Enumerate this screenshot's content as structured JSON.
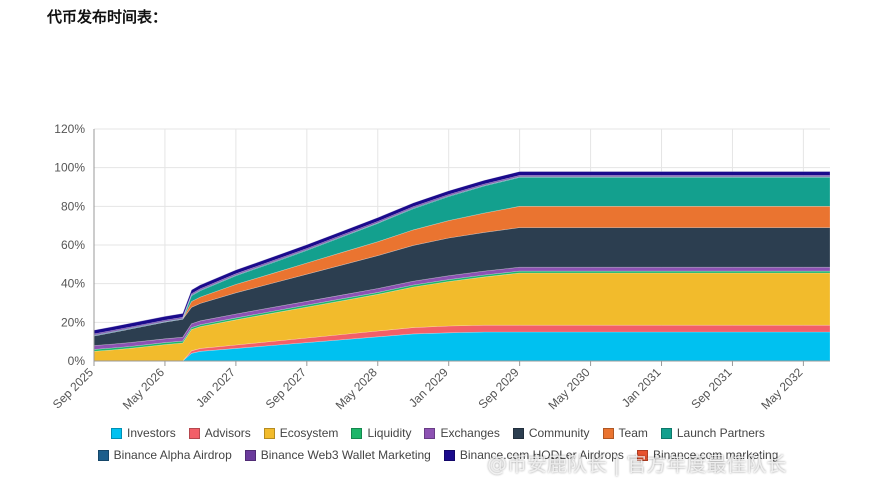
{
  "page": {
    "title": "代币发布时间表："
  },
  "watermark": "@币安鹿队长 | 官方年度最佳队长",
  "chart_data": {
    "type": "area",
    "stacked": true,
    "x": [
      "Sep 2025",
      "Nov 2025",
      "Jan 2026",
      "Mar 2026",
      "May 2026",
      "Jul 2026",
      "Aug 2026",
      "Sep 2026",
      "Jan 2027",
      "May 2027",
      "Sep 2027",
      "Jan 2028",
      "May 2028",
      "Sep 2028",
      "Jan 2029",
      "May 2029",
      "Sep 2029",
      "Jan 2030",
      "May 2030",
      "Sep 2030",
      "Jan 2031",
      "May 2031",
      "Sep 2031",
      "Jan 2032",
      "May 2032",
      "Aug 2032"
    ],
    "x_tick_labels": [
      "Sep 2025",
      "May 2026",
      "Jan 2027",
      "Sep 2027",
      "May 2028",
      "Jan 2029",
      "Sep 2029",
      "May 2030",
      "Jan 2031",
      "Sep 2031",
      "May 2032"
    ],
    "y_ticks": [
      "0%",
      "20%",
      "40%",
      "60%",
      "80%",
      "100%",
      "120%"
    ],
    "ylim": [
      0,
      120
    ],
    "grid": true,
    "legend_position": "bottom",
    "series": [
      {
        "name": "Investors",
        "color": "#00c1f0",
        "values": [
          0,
          0,
          0,
          0,
          0,
          0,
          4,
          5,
          6.5,
          8,
          9.5,
          11,
          12.5,
          14,
          14.6,
          15,
          15,
          15,
          15,
          15,
          15,
          15,
          15,
          15,
          15,
          15
        ]
      },
      {
        "name": "Advisors",
        "color": "#f25f68",
        "values": [
          0,
          0,
          0,
          0,
          0,
          0,
          1.3,
          1.5,
          1.8,
          2.1,
          2.4,
          2.7,
          3,
          3.3,
          3.5,
          3.5,
          3.5,
          3.5,
          3.5,
          3.5,
          3.5,
          3.5,
          3.5,
          3.5,
          3.5,
          3.5
        ]
      },
      {
        "name": "Ecosystem",
        "color": "#f2bb2c",
        "values": [
          5,
          5.7,
          6.5,
          7.5,
          8.5,
          9.3,
          11,
          11.3,
          13,
          14.5,
          16,
          17.5,
          19,
          21,
          23,
          25,
          27,
          27,
          27,
          27,
          27,
          27,
          27,
          27,
          27,
          27
        ]
      },
      {
        "name": "Liquidity",
        "color": "#1db669",
        "values": [
          1,
          1,
          1,
          1,
          1,
          1,
          1,
          1,
          1,
          1,
          1,
          1,
          1,
          1,
          1,
          1,
          1,
          1,
          1,
          1,
          1,
          1,
          1,
          1,
          1,
          1
        ]
      },
      {
        "name": "Exchanges",
        "color": "#8d52b3",
        "values": [
          2,
          2,
          2,
          2,
          2,
          2,
          2,
          2,
          2,
          2,
          2,
          2,
          2,
          2,
          2,
          2,
          2,
          2,
          2,
          2,
          2,
          2,
          2,
          2,
          2,
          2
        ]
      },
      {
        "name": "Community",
        "color": "#2c3e50",
        "values": [
          5,
          6,
          7,
          7.8,
          8.6,
          9.3,
          8.5,
          9,
          11,
          12.5,
          14,
          15.5,
          17,
          18.5,
          19.5,
          20,
          20.5,
          20.5,
          20.5,
          20.5,
          20.5,
          20.5,
          20.5,
          20.5,
          20.5,
          20.5
        ]
      },
      {
        "name": "Team",
        "color": "#ea7430",
        "values": [
          0,
          0,
          0,
          0,
          0,
          0,
          3,
          3.3,
          4.3,
          5,
          5.8,
          6.5,
          7.2,
          8,
          9,
          10,
          11,
          11,
          11,
          11,
          11,
          11,
          11,
          11,
          11,
          11
        ]
      },
      {
        "name": "Launch Partners",
        "color": "#13a08e",
        "values": [
          0,
          0,
          0,
          0,
          0,
          0,
          3,
          3.3,
          4.5,
          5.5,
          6.5,
          8,
          9.5,
          11,
          12.5,
          14,
          15,
          15,
          15,
          15,
          15,
          15,
          15,
          15,
          15,
          15
        ]
      },
      {
        "name": "Binance Alpha Airdrop",
        "color": "#1c5e8c",
        "values": [
          0.4,
          0.4,
          0.4,
          0.4,
          0.4,
          0.4,
          0.4,
          0.4,
          0.4,
          0.4,
          0.4,
          0.4,
          0.4,
          0.4,
          0.4,
          0.4,
          0.4,
          0.4,
          0.4,
          0.4,
          0.4,
          0.4,
          0.4,
          0.4,
          0.4,
          0.4
        ]
      },
      {
        "name": "Binance Web3 Wallet Marketing",
        "color": "#6b3b9c",
        "values": [
          0.6,
          0.6,
          0.6,
          0.6,
          0.6,
          0.6,
          0.6,
          0.6,
          0.6,
          0.6,
          0.6,
          0.6,
          0.6,
          0.6,
          0.6,
          0.6,
          0.6,
          0.6,
          0.6,
          0.6,
          0.6,
          0.6,
          0.6,
          0.6,
          0.6,
          0.6
        ]
      },
      {
        "name": "Binance.com HODLer Airdrops",
        "color": "#1a0a8c",
        "values": [
          2,
          2,
          2,
          2,
          2,
          2,
          2,
          2,
          2,
          2,
          2,
          2,
          2,
          2,
          2,
          2,
          2,
          2,
          2,
          2,
          2,
          2,
          2,
          2,
          2,
          2
        ]
      },
      {
        "name": "Binance.com marketing",
        "color": "#e8522e",
        "values": [
          0,
          0,
          0,
          0,
          0,
          0,
          0,
          0,
          0,
          0,
          0,
          0,
          0,
          0,
          0,
          0,
          0,
          0,
          0,
          0,
          0,
          0,
          0,
          0,
          0,
          0
        ]
      }
    ]
  }
}
